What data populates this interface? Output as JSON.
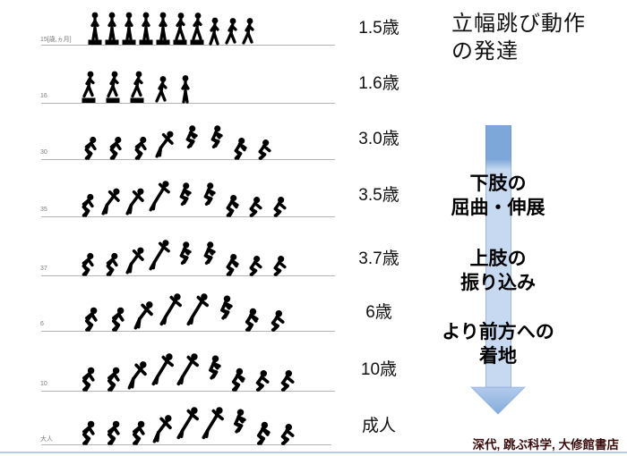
{
  "title": "立幅跳び動作の発達",
  "rows": [
    {
      "side_label": "15[歳,ヵ月]",
      "age": "1.5歳",
      "poses": [
        "stand+block",
        "stand+block",
        "stand+block",
        "stand+block",
        "stand+block",
        "step+block",
        "step+block",
        "step",
        "walk",
        "walk"
      ]
    },
    {
      "side_label": "16",
      "age": "1.6歳",
      "poses": [
        "walk+block",
        "walk+block",
        "walk+block",
        "walk",
        "stand"
      ]
    },
    {
      "side_label": "30",
      "age": "3.0歳",
      "poses": [
        "crouch",
        "crouch",
        "crouch",
        "takeoff",
        "kneesup",
        "kneesup",
        "land",
        "squat"
      ]
    },
    {
      "side_label": "35",
      "age": "3.5歳",
      "poses": [
        "crouch",
        "takeoff",
        "takeoff",
        "flight",
        "kneesup",
        "kneesup",
        "land",
        "squat",
        "squat"
      ]
    },
    {
      "side_label": "37",
      "age": "3.7歳",
      "poses": [
        "crouch",
        "crouch",
        "takeoff",
        "flight",
        "kneesup",
        "kneesup",
        "land",
        "squat",
        "squat"
      ]
    },
    {
      "side_label": "6",
      "age": "6歳",
      "poses": [
        "crouch",
        "crouch",
        "takeoff",
        "flight",
        "flight",
        "kneesup",
        "land",
        "squat"
      ]
    },
    {
      "side_label": "10",
      "age": "10歳",
      "poses": [
        "crouch",
        "crouch",
        "takeoff",
        "flight",
        "flight",
        "kneesup",
        "land",
        "squat",
        "squat"
      ]
    },
    {
      "side_label": "大人",
      "age": "成人",
      "poses": [
        "crouch",
        "crouch",
        "crouch",
        "takeoff",
        "flight",
        "flight",
        "kneesup",
        "land",
        "squat"
      ]
    }
  ],
  "arrow_labels": [
    {
      "line1": "下肢の",
      "line2": "屈曲・伸展"
    },
    {
      "line1": "上肢の",
      "line2": "振り込み"
    },
    {
      "line1": "より前方への",
      "line2": "着地"
    }
  ],
  "citation": "深代, 跳ぶ科学, 大修館書店",
  "colors": {
    "arrow_dark": "#7da7d9",
    "arrow_light": "#c6d9f1",
    "arrow_head_top": "#b3cbec",
    "arrow_head_bottom": "#84abdc",
    "citation": "#3a0d0d",
    "bottom_line": "#b8cce4",
    "silhouette": "#000000"
  }
}
